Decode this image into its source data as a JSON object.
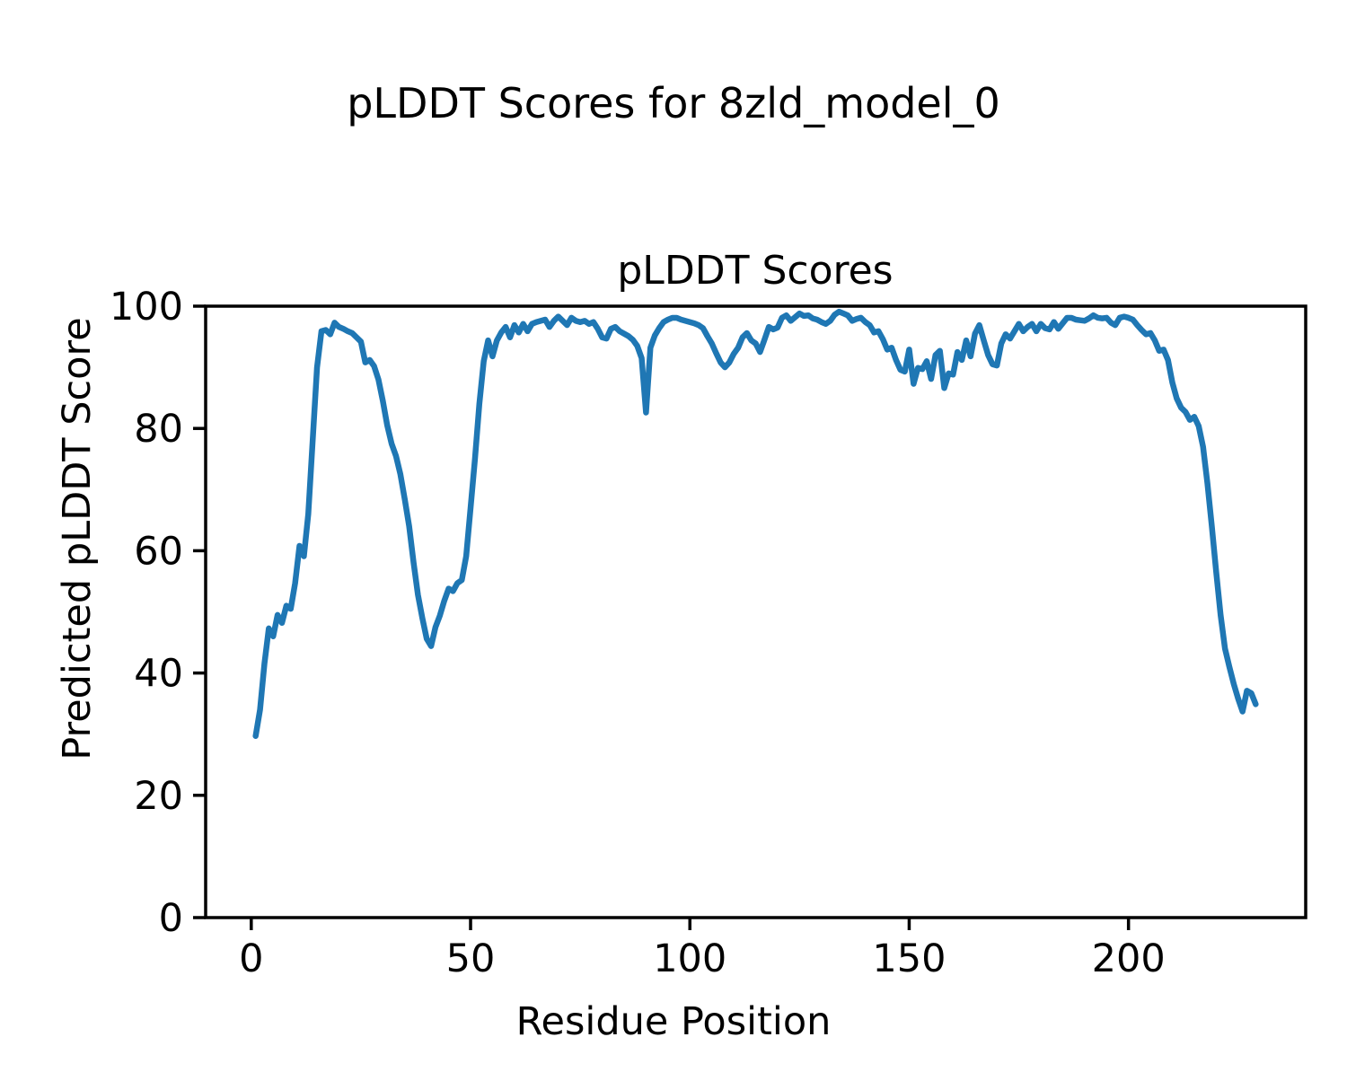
{
  "figure": {
    "suptitle": "pLDDT Scores for 8zld_model_0",
    "background_color": "#ffffff"
  },
  "chart_data": {
    "type": "line",
    "title": "pLDDT Scores",
    "xlabel": "Residue Position",
    "ylabel": "Predicted pLDDT Score",
    "grid": false,
    "legend": "none",
    "axis_color": "#000000",
    "text_color": "#000000",
    "x_start": 1,
    "x_step": 1,
    "xlim": [
      -10.4,
      240.4
    ],
    "ylim": [
      0,
      100
    ],
    "xticks": [
      0,
      50,
      100,
      150,
      200
    ],
    "yticks": [
      0,
      20,
      40,
      60,
      80,
      100
    ],
    "series": [
      {
        "name": "pLDDT",
        "color": "#1f77b4",
        "line_width": 6.5,
        "values": [
          29.7,
          34.0,
          41.5,
          47.3,
          46.0,
          49.5,
          48.2,
          51.0,
          50.5,
          54.7,
          60.8,
          59.1,
          66.0,
          78.0,
          90.0,
          95.9,
          96.1,
          95.4,
          97.3,
          96.6,
          96.3,
          95.9,
          95.6,
          94.9,
          94.2,
          90.8,
          91.2,
          90.2,
          88.0,
          84.5,
          80.5,
          77.5,
          75.5,
          72.5,
          68.4,
          64.0,
          58.1,
          52.8,
          49.0,
          45.6,
          44.4,
          47.5,
          49.4,
          51.8,
          53.8,
          53.4,
          54.7,
          55.2,
          59.1,
          67.0,
          75.0,
          84.0,
          91.0,
          94.4,
          91.8,
          94.4,
          95.7,
          96.6,
          94.9,
          96.9,
          95.7,
          97.1,
          95.9,
          97.1,
          97.4,
          97.6,
          97.8,
          96.6,
          97.6,
          98.3,
          97.6,
          96.9,
          98.1,
          97.6,
          97.4,
          97.6,
          97.1,
          97.4,
          96.3,
          94.9,
          94.7,
          96.3,
          96.6,
          95.9,
          95.5,
          95.1,
          94.5,
          93.5,
          91.5,
          82.6,
          93.2,
          95.2,
          96.4,
          97.4,
          97.8,
          98.1,
          98.1,
          97.8,
          97.6,
          97.4,
          97.2,
          96.9,
          96.4,
          95.1,
          93.9,
          92.3,
          90.8,
          90.0,
          90.8,
          92.2,
          93.2,
          94.9,
          95.6,
          94.4,
          93.9,
          92.5,
          94.5,
          96.6,
          96.2,
          96.5,
          98.1,
          98.5,
          97.6,
          98.2,
          98.8,
          98.4,
          98.5,
          98.0,
          97.8,
          97.4,
          97.1,
          97.6,
          98.6,
          99.1,
          98.8,
          98.5,
          97.6,
          97.9,
          98.1,
          97.4,
          96.9,
          95.7,
          95.9,
          94.6,
          92.9,
          93.2,
          91.2,
          89.6,
          89.3,
          92.9,
          87.3,
          89.9,
          89.7,
          91.0,
          88.1,
          92.0,
          92.7,
          86.6,
          89.0,
          88.8,
          92.5,
          91.2,
          94.4,
          91.8,
          95.5,
          96.9,
          94.4,
          92.0,
          90.5,
          90.3,
          93.9,
          95.4,
          94.7,
          95.9,
          97.1,
          95.9,
          96.6,
          97.1,
          95.9,
          97.1,
          96.4,
          96.2,
          97.4,
          96.3,
          97.2,
          98.1,
          98.1,
          97.8,
          97.7,
          97.6,
          98.0,
          98.5,
          98.1,
          98.0,
          98.1,
          97.3,
          96.9,
          98.1,
          98.3,
          98.1,
          97.8,
          96.9,
          96.1,
          95.4,
          95.6,
          94.4,
          92.7,
          92.9,
          91.2,
          87.5,
          84.9,
          83.4,
          82.7,
          81.4,
          81.9,
          80.4,
          77.0,
          71.0,
          64.0,
          56.5,
          49.5,
          44.0,
          41.0,
          38.2,
          35.8,
          33.7,
          37.1,
          36.7,
          34.9
        ]
      }
    ]
  }
}
